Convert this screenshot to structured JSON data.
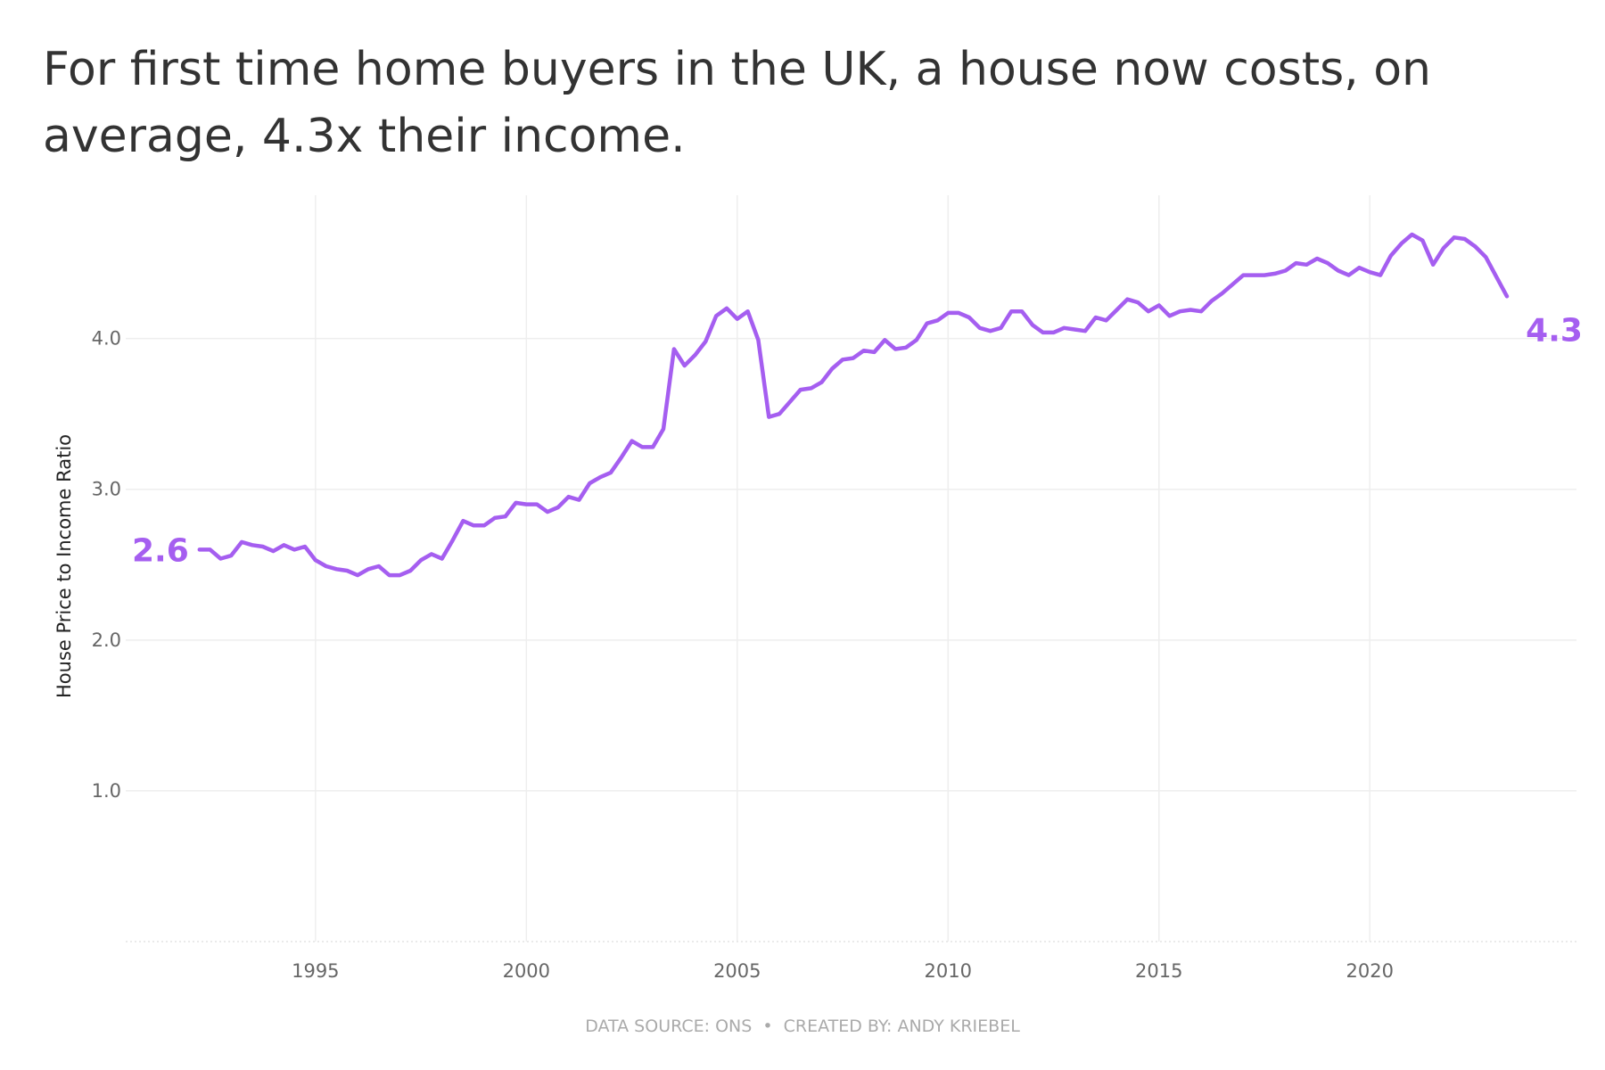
{
  "chart_data": {
    "type": "line",
    "title": "For first time home buyers in the UK, a house now costs, on average, 4.3x their income.",
    "title_lines": [
      "For first time home buyers in the UK, a house now costs, on",
      "average, 4.3x their income."
    ],
    "ylabel": "House Price to Income Ratio",
    "footer": "DATA SOURCE: ONS  •  CREATED BY: ANDY KRIEBEL",
    "start_label": "2.6",
    "end_label": "4.3",
    "color": "#a55ef0",
    "grid": true,
    "xlim": [
      1990.5,
      2024.9
    ],
    "ylim": [
      0,
      4.95
    ],
    "xticks": [
      1995,
      2000,
      2005,
      2010,
      2015,
      2020
    ],
    "yticks": [
      {
        "value": 1,
        "label": "1.0"
      },
      {
        "value": 2,
        "label": "2.0"
      },
      {
        "value": 3,
        "label": "3.0"
      },
      {
        "value": 4,
        "label": "4.0"
      }
    ],
    "x": [
      1992.25,
      1992.5,
      1992.75,
      1993,
      1993.25,
      1993.5,
      1993.75,
      1994,
      1994.25,
      1994.5,
      1994.75,
      1995,
      1995.25,
      1995.5,
      1995.75,
      1996,
      1996.25,
      1996.5,
      1996.75,
      1997,
      1997.25,
      1997.5,
      1997.75,
      1998,
      1998.25,
      1998.5,
      1998.75,
      1999,
      1999.25,
      1999.5,
      1999.75,
      2000,
      2000.25,
      2000.5,
      2000.75,
      2001,
      2001.25,
      2001.5,
      2001.75,
      2002,
      2002.25,
      2002.5,
      2002.75,
      2003,
      2003.25,
      2003.5,
      2003.75,
      2004,
      2004.25,
      2004.5,
      2004.75,
      2005,
      2005.25,
      2005.5,
      2005.75,
      2006,
      2006.25,
      2006.5,
      2006.75,
      2007,
      2007.25,
      2007.5,
      2007.75,
      2008,
      2008.25,
      2008.5,
      2008.75,
      2009,
      2009.25,
      2009.5,
      2009.75,
      2010,
      2010.25,
      2010.5,
      2010.75,
      2011,
      2011.25,
      2011.5,
      2011.75,
      2012,
      2012.25,
      2012.5,
      2012.75,
      2013,
      2013.25,
      2013.5,
      2013.75,
      2014,
      2014.25,
      2014.5,
      2014.75,
      2015,
      2015.25,
      2015.5,
      2015.75,
      2016,
      2016.25,
      2016.5,
      2016.75,
      2017,
      2017.25,
      2017.5,
      2017.75,
      2018,
      2018.25,
      2018.5,
      2018.75,
      2019,
      2019.25,
      2019.5,
      2019.75,
      2020,
      2020.25,
      2020.5,
      2020.75,
      2021,
      2021.25,
      2021.5,
      2021.75,
      2022,
      2022.25,
      2022.5,
      2022.75,
      2023,
      2023.25
    ],
    "values": [
      2.6,
      2.6,
      2.54,
      2.56,
      2.65,
      2.63,
      2.62,
      2.59,
      2.63,
      2.6,
      2.62,
      2.53,
      2.49,
      2.47,
      2.46,
      2.43,
      2.47,
      2.49,
      2.43,
      2.43,
      2.46,
      2.53,
      2.57,
      2.54,
      2.66,
      2.79,
      2.76,
      2.76,
      2.81,
      2.82,
      2.91,
      2.9,
      2.9,
      2.85,
      2.88,
      2.95,
      2.93,
      3.04,
      3.08,
      3.11,
      3.21,
      3.32,
      3.28,
      3.28,
      3.4,
      3.93,
      3.82,
      3.89,
      3.98,
      4.15,
      4.2,
      4.13,
      4.18,
      3.99,
      3.48,
      3.5,
      3.58,
      3.66,
      3.67,
      3.71,
      3.8,
      3.86,
      3.87,
      3.92,
      3.91,
      3.99,
      3.93,
      3.94,
      3.99,
      4.1,
      4.12,
      4.17,
      4.17,
      4.14,
      4.07,
      4.05,
      4.07,
      4.18,
      4.18,
      4.09,
      4.04,
      4.04,
      4.07,
      4.06,
      4.05,
      4.14,
      4.12,
      4.19,
      4.26,
      4.24,
      4.18,
      4.22,
      4.15,
      4.18,
      4.19,
      4.18,
      4.25,
      4.3,
      4.36,
      4.42,
      4.42,
      4.42,
      4.43,
      4.45,
      4.5,
      4.49,
      4.53,
      4.5,
      4.45,
      4.42,
      4.47,
      4.44,
      4.42,
      4.55,
      4.63,
      4.69,
      4.65,
      4.49,
      4.6,
      4.67,
      4.66,
      4.61,
      4.54,
      4.41,
      4.28
    ]
  }
}
